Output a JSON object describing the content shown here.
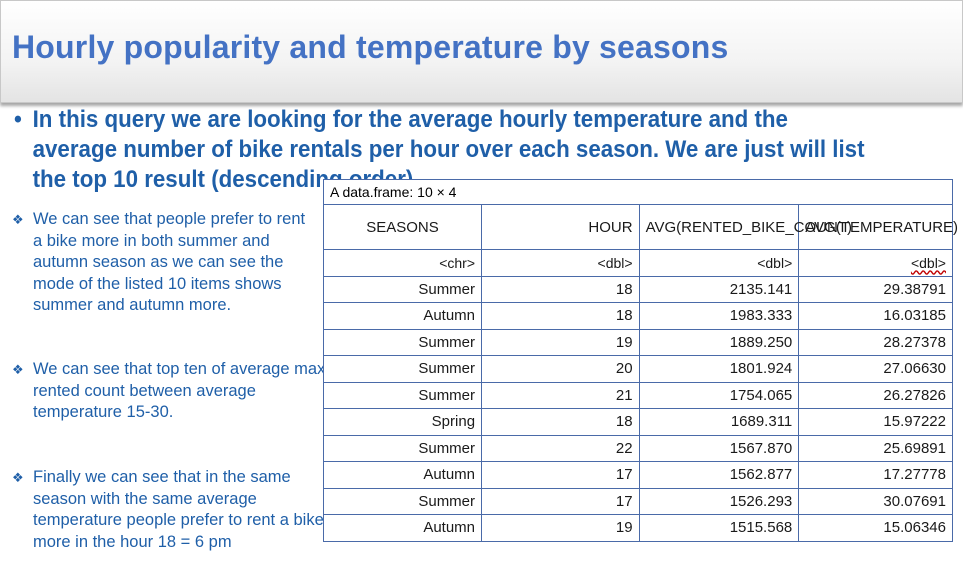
{
  "slide": {
    "title": "Hourly popularity and temperature by seasons",
    "intro_bullet": "•",
    "intro": "In this query we are looking for the average hourly temperature and the average number of bike rentals per hour over each season. We are just will list the top 10 result (descending order).",
    "notes": [
      {
        "icon": "❖",
        "text": "We can see that people prefer to rent a bike more in both summer and autumn season as we can see the mode of  the listed 10 items shows summer and autumn more."
      },
      {
        "icon": "❖",
        "text": "We can see that top ten of average max rented count between average temperature 15-30."
      },
      {
        "icon": "❖",
        "text": "Finally we can see that in the same season with the same average temperature people prefer to rent a bike more in the hour 18 = 6 pm"
      }
    ]
  },
  "dataframe": {
    "caption": "A data.frame: 10 × 4",
    "headers": [
      "SEASONS",
      "HOUR",
      "AVG(RENTED_BIKE_COUNT)",
      "AVG(TEMPERATURE)"
    ],
    "types": [
      "<chr>",
      "<dbl>",
      "<dbl>",
      "<dbl>"
    ],
    "rows": [
      [
        "Summer",
        "18",
        "2135.141",
        "29.38791"
      ],
      [
        "Autumn",
        "18",
        "1983.333",
        "16.03185"
      ],
      [
        "Summer",
        "19",
        "1889.250",
        "28.27378"
      ],
      [
        "Summer",
        "20",
        "1801.924",
        "27.06630"
      ],
      [
        "Summer",
        "21",
        "1754.065",
        "26.27826"
      ],
      [
        "Spring",
        "18",
        "1689.311",
        "15.97222"
      ],
      [
        "Summer",
        "22",
        "1567.870",
        "25.69891"
      ],
      [
        "Autumn",
        "17",
        "1562.877",
        "17.27778"
      ],
      [
        "Summer",
        "17",
        "1526.293",
        "30.07691"
      ],
      [
        "Autumn",
        "19",
        "1515.568",
        "15.06346"
      ]
    ]
  },
  "colors": {
    "title": "#4472c4",
    "body_text": "#1f5fa8",
    "table_border": "#4a6aa8"
  }
}
